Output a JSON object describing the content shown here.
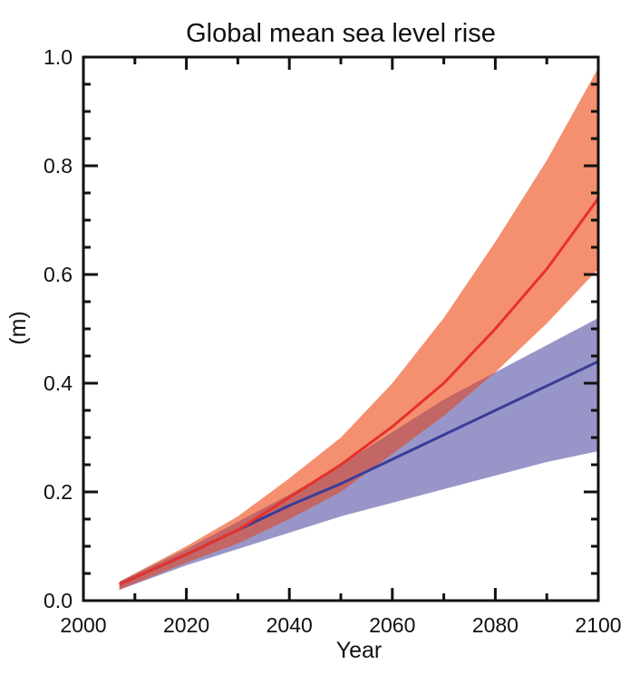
{
  "chart_data": {
    "type": "area",
    "title": "Global mean sea level rise",
    "xlabel": "Year",
    "ylabel": "(m)",
    "xlim": [
      2000,
      2100
    ],
    "ylim": [
      0.0,
      1.0
    ],
    "xticks": [
      "2000",
      "2020",
      "2040",
      "2060",
      "2080",
      "2100"
    ],
    "yticks": [
      "0.0",
      "0.2",
      "0.4",
      "0.6",
      "0.8",
      "1.0"
    ],
    "grid": false,
    "x": [
      2007,
      2020,
      2030,
      2040,
      2050,
      2060,
      2070,
      2080,
      2090,
      2100
    ],
    "series": [
      {
        "color": "#e8302a",
        "band_color": "#f4906f",
        "median": [
          0.03,
          0.085,
          0.13,
          0.19,
          0.25,
          0.32,
          0.4,
          0.5,
          0.61,
          0.74
        ],
        "upper": [
          0.035,
          0.1,
          0.155,
          0.225,
          0.3,
          0.4,
          0.52,
          0.66,
          0.81,
          0.98
        ],
        "lower": [
          0.02,
          0.07,
          0.105,
          0.15,
          0.2,
          0.27,
          0.34,
          0.42,
          0.51,
          0.61
        ]
      },
      {
        "color": "#3a3c9a",
        "band_color": "#9896c8",
        "median": [
          0.03,
          0.085,
          0.13,
          0.175,
          0.215,
          0.26,
          0.305,
          0.35,
          0.395,
          0.44
        ],
        "upper": [
          0.035,
          0.095,
          0.145,
          0.195,
          0.25,
          0.31,
          0.37,
          0.42,
          0.47,
          0.52
        ],
        "lower": [
          0.02,
          0.065,
          0.095,
          0.125,
          0.155,
          0.18,
          0.205,
          0.23,
          0.255,
          0.275
        ]
      }
    ],
    "overlap_color": "#c26666"
  }
}
